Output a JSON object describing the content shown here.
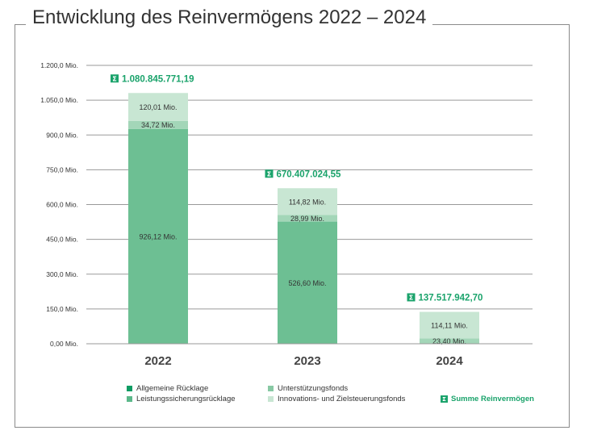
{
  "title": "Entwicklung des Reinvermögens 2022 – 2024",
  "chart_data": {
    "type": "bar",
    "stacked": true,
    "categories": [
      "2022",
      "2023",
      "2024"
    ],
    "series": [
      {
        "name": "Allgemeine Rücklage",
        "values": [
          926.12,
          526.6,
          0
        ],
        "labels": [
          "926,12 Mio.",
          "526,60 Mio.",
          ""
        ],
        "color": "#6dbf93"
      },
      {
        "name": "Leistungssicherungsrücklage",
        "values": [
          0,
          0,
          0
        ],
        "labels": [
          "",
          "",
          ""
        ],
        "color": "#88c9a4"
      },
      {
        "name": "Unterstützungsfonds",
        "values": [
          34.72,
          28.99,
          23.4
        ],
        "labels": [
          "34,72 Mio.",
          "28,99 Mio.",
          "23,40 Mio."
        ],
        "color": "#a3d6b8"
      },
      {
        "name": "Innovations- und Zielsteuerungsfonds",
        "values": [
          120.01,
          114.82,
          114.11
        ],
        "labels": [
          "120,01 Mio.",
          "114,82 Mio.",
          "114,11 Mio."
        ],
        "color": "#c8e6d3"
      }
    ],
    "totals": [
      "1.080.845.771,19",
      "670.407.024,55",
      "137.517.942,70"
    ],
    "totals_legend": "Summe Reinvermögen",
    "yticks": [
      0,
      150,
      300,
      450,
      600,
      750,
      900,
      1050,
      1200
    ],
    "ytick_labels": [
      "0,00 Mio.",
      "150,0 Mio.",
      "300,0 Mio.",
      "450,0 Mio.",
      "600,0 Mio.",
      "750,0 Mio.",
      "900,0 Mio.",
      "1.050,0 Mio.",
      "1.200,0 Mio."
    ],
    "ylim": [
      0,
      1200
    ],
    "grid": true,
    "legend_position": "bottom",
    "accent_color": "#1aa36b",
    "legend_swatch_colors": [
      "#0e9c63",
      "#5bb88a",
      "#88c9a4",
      "#c8e6d3"
    ]
  }
}
